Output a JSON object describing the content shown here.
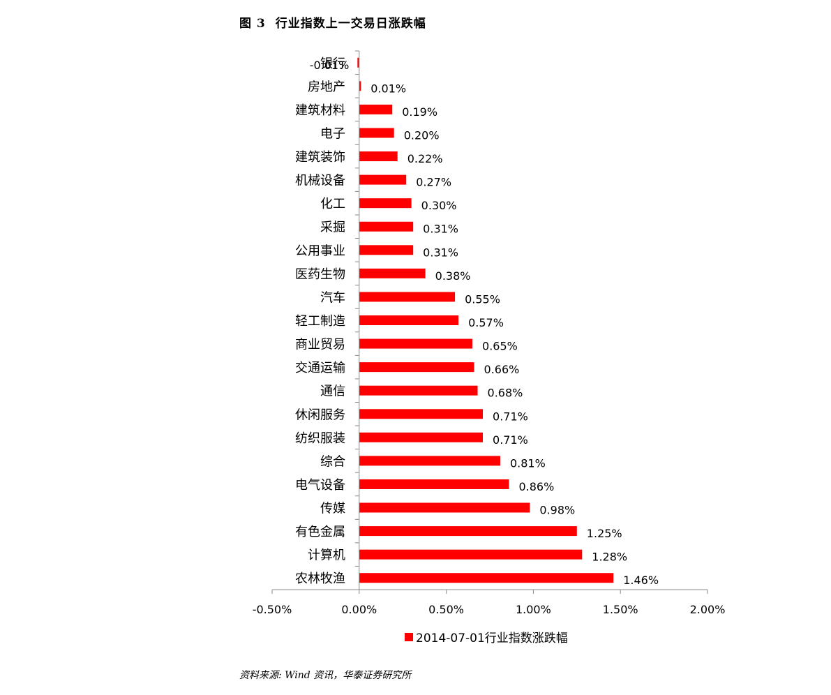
{
  "figure": {
    "number": "图 3",
    "title": "行业指数上一交易日涨跌幅"
  },
  "source_note": "资料来源: Wind 资讯，华泰证券研究所",
  "colors": {
    "bar": "#ff0000",
    "axis": "#888888",
    "text": "#000000"
  },
  "chart_data": {
    "type": "bar",
    "orientation": "horizontal",
    "title": "",
    "xlabel": "",
    "ylabel": "",
    "xlim": [
      -0.5,
      2.0
    ],
    "x_ticks": [
      -0.5,
      0,
      0.5,
      1.0,
      1.5,
      2.0
    ],
    "x_tick_labels": [
      "-0.50%",
      "0.00%",
      "0.50%",
      "1.00%",
      "1.50%",
      "2.00%"
    ],
    "grid": false,
    "legend_position": "bottom",
    "categories": [
      "银行",
      "房地产",
      "建筑材料",
      "电子",
      "建筑装饰",
      "机械设备",
      "化工",
      "采掘",
      "公用事业",
      "医药生物",
      "汽车",
      "轻工制造",
      "商业贸易",
      "交通运输",
      "通信",
      "休闲服务",
      "纺织服装",
      "综合",
      "电气设备",
      "传媒",
      "有色金属",
      "计算机",
      "农林牧渔"
    ],
    "series": [
      {
        "name": "2014-07-01行业指数涨跌幅",
        "values": [
          -0.01,
          0.01,
          0.19,
          0.2,
          0.22,
          0.27,
          0.3,
          0.31,
          0.31,
          0.38,
          0.55,
          0.57,
          0.65,
          0.66,
          0.68,
          0.71,
          0.71,
          0.81,
          0.86,
          0.98,
          1.25,
          1.28,
          1.46
        ],
        "data_labels": [
          "-0.01%",
          "0.01%",
          "0.19%",
          "0.20%",
          "0.22%",
          "0.27%",
          "0.30%",
          "0.31%",
          "0.31%",
          "0.38%",
          "0.55%",
          "0.57%",
          "0.65%",
          "0.66%",
          "0.68%",
          "0.71%",
          "0.71%",
          "0.81%",
          "0.86%",
          "0.98%",
          "1.25%",
          "1.28%",
          "1.46%"
        ]
      }
    ]
  }
}
